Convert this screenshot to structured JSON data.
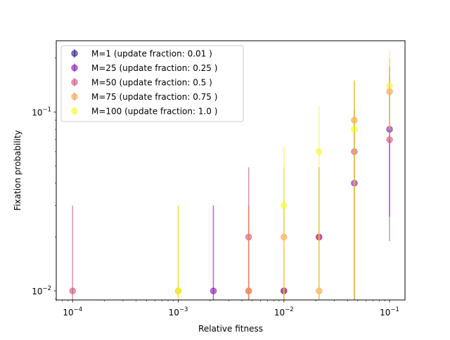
{
  "chart_data": {
    "type": "scatter",
    "xlabel": "Relative fitness",
    "ylabel": "Fixation probability",
    "x_scale": "log",
    "y_scale": "log",
    "xlim": [
      7e-05,
      0.14
    ],
    "ylim": [
      0.0089,
      0.25
    ],
    "x_ticks": [
      {
        "value": 0.0001,
        "base": "10",
        "exp": "−4"
      },
      {
        "value": 0.001,
        "base": "10",
        "exp": "−3"
      },
      {
        "value": 0.01,
        "base": "10",
        "exp": "−2"
      },
      {
        "value": 0.1,
        "base": "10",
        "exp": "−1"
      }
    ],
    "y_ticks": [
      {
        "value": 0.01,
        "base": "10",
        "exp": "−2"
      },
      {
        "value": 0.1,
        "base": "10",
        "exp": "−1"
      }
    ],
    "grid": false,
    "legend_position": "top-left",
    "series": [
      {
        "name": "M=1 (update fraction: 0.01 )",
        "color": "#0d0887",
        "points": [
          {
            "x": 0.01,
            "y": 0.01,
            "err_low": 0.0001,
            "err_high": 0.01
          }
        ]
      },
      {
        "name": "M=25 (update fraction: 0.25 )",
        "color": "#7e03a8",
        "points": [
          {
            "x": 0.00215,
            "y": 0.01,
            "err_low": 0.0001,
            "err_high": 0.03
          },
          {
            "x": 0.0215,
            "y": 0.02,
            "err_low": 0.0001,
            "err_high": 0.049
          },
          {
            "x": 0.0464,
            "y": 0.04,
            "err_low": 0.0001,
            "err_high": 0.103
          },
          {
            "x": 0.1,
            "y": 0.08,
            "err_low": 0.026,
            "err_high": 0.18
          }
        ]
      },
      {
        "name": "M=50 (update fraction: 0.5 )",
        "color": "#cc4778",
        "points": [
          {
            "x": 0.0001,
            "y": 0.01,
            "err_low": 0.0001,
            "err_high": 0.03
          },
          {
            "x": 0.00464,
            "y": 0.02,
            "err_low": 0.0001,
            "err_high": 0.049
          },
          {
            "x": 0.00464,
            "y": 0.01,
            "err_low": 0.0001,
            "err_high": 0.03
          },
          {
            "x": 0.01,
            "y": 0.01,
            "err_low": 0.0001,
            "err_high": 0.03
          },
          {
            "x": 0.0215,
            "y": 0.02,
            "err_low": 0.0001,
            "err_high": 0.049
          },
          {
            "x": 0.0464,
            "y": 0.06,
            "err_low": 0.0001,
            "err_high": 0.15
          },
          {
            "x": 0.1,
            "y": 0.07,
            "err_low": 0.019,
            "err_high": 0.16
          }
        ]
      },
      {
        "name": "M=75 (update fraction: 0.75 )",
        "color": "#f89540",
        "points": [
          {
            "x": 0.001,
            "y": 0.01,
            "err_low": 0.0001,
            "err_high": 0.03
          },
          {
            "x": 0.00464,
            "y": 0.01,
            "err_low": 0.0001,
            "err_high": 0.03
          },
          {
            "x": 0.01,
            "y": 0.02,
            "err_low": 0.0001,
            "err_high": 0.049
          },
          {
            "x": 0.0215,
            "y": 0.01,
            "err_low": 0.0001,
            "err_high": 0.049
          },
          {
            "x": 0.0464,
            "y": 0.09,
            "err_low": 0.0001,
            "err_high": 0.15
          },
          {
            "x": 0.1,
            "y": 0.13,
            "err_low": 0.07,
            "err_high": 0.2
          }
        ]
      },
      {
        "name": "M=100 (update fraction: 1.0 )",
        "color": "#f0f921",
        "points": [
          {
            "x": 0.001,
            "y": 0.01,
            "err_low": 0.0001,
            "err_high": 0.03
          },
          {
            "x": 0.01,
            "y": 0.03,
            "err_low": 0.0001,
            "err_high": 0.064
          },
          {
            "x": 0.0215,
            "y": 0.06,
            "err_low": 0.0001,
            "err_high": 0.107
          },
          {
            "x": 0.0464,
            "y": 0.08,
            "err_low": 0.0001,
            "err_high": 0.15
          },
          {
            "x": 0.1,
            "y": 0.14,
            "err_low": 0.08,
            "err_high": 0.22
          }
        ]
      }
    ]
  }
}
